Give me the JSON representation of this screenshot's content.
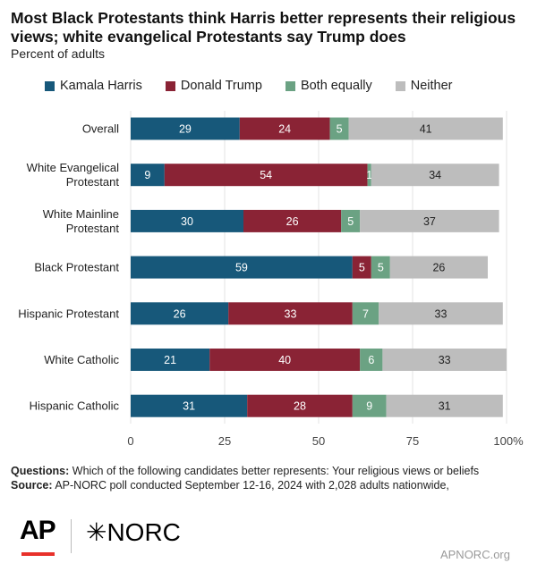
{
  "title": "Most Black Protestants think Harris better represents their religious views; white evangelical Protestants say Trump does",
  "subtitle": "Percent of adults",
  "footer": {
    "questions_label": "Questions:",
    "questions_text": " Which of the following candidates better represents: Your religious views or beliefs",
    "source_label": "Source:",
    "source_text": " AP-NORC poll conducted September 12-16, 2024 with 2,028 adults nationwide,"
  },
  "logos": {
    "ap": "AP",
    "norc": "✳NORC"
  },
  "site": "APNORC.org",
  "colors": {
    "harris": "#17587a",
    "trump": "#8a2335",
    "both": "#6ba283",
    "neither": "#bdbdbd",
    "gridline": "#e3e3e3"
  },
  "chart_data": {
    "type": "bar",
    "orientation": "horizontal",
    "stacked": true,
    "categories": [
      "Overall",
      "White Evangelical\nProtestant",
      "White Mainline\nProtestant",
      "Black Protestant",
      "Hispanic Protestant",
      "White Catholic",
      "Hispanic Catholic"
    ],
    "series": [
      {
        "name": "Kamala Harris",
        "values": [
          29,
          9,
          30,
          59,
          26,
          21,
          31
        ]
      },
      {
        "name": "Donald Trump",
        "values": [
          24,
          54,
          26,
          5,
          33,
          40,
          28
        ]
      },
      {
        "name": "Both equally",
        "values": [
          5,
          1,
          5,
          5,
          7,
          6,
          9
        ]
      },
      {
        "name": "Neither",
        "values": [
          41,
          34,
          37,
          26,
          33,
          33,
          31
        ]
      }
    ],
    "xlim": [
      0,
      100
    ],
    "xticks": [
      "0",
      "25",
      "50",
      "75",
      "100%"
    ],
    "legend": "top",
    "grid": true
  }
}
